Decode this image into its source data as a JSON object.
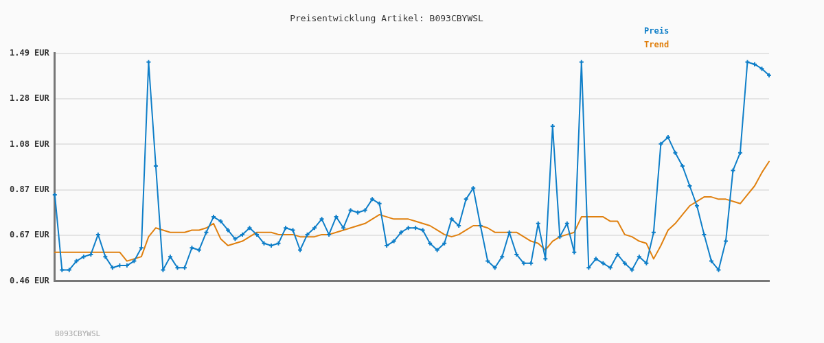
{
  "chart_data": {
    "type": "line",
    "title": "Preisentwicklung Artikel: B093CBYWSL",
    "categories": [
      null,
      null,
      null,
      null,
      null,
      null,
      null,
      null,
      null,
      null,
      null,
      null,
      null,
      null,
      null,
      null,
      null,
      null,
      null,
      null,
      null,
      null,
      null,
      null,
      null,
      null,
      null,
      null,
      null,
      null,
      null,
      null,
      null,
      null,
      null,
      null,
      null,
      null,
      null,
      null,
      null,
      null,
      null,
      null,
      null,
      null,
      null,
      null,
      null,
      null,
      null,
      null,
      null,
      null,
      null,
      null,
      null,
      null,
      null,
      null,
      null,
      null,
      null,
      null,
      null,
      null,
      null,
      null,
      null,
      null,
      null,
      null,
      null,
      null,
      null,
      null,
      null,
      null,
      null,
      null,
      null,
      null,
      null,
      null,
      null,
      null,
      null,
      null,
      null,
      null,
      null,
      null,
      null,
      null,
      null,
      null,
      null,
      null,
      null,
      null
    ],
    "series": [
      {
        "name": "Preis",
        "color": "#0e7ec8",
        "marker": "cross",
        "values": [
          0.85,
          0.51,
          0.51,
          0.55,
          0.57,
          0.58,
          0.67,
          0.57,
          0.52,
          0.53,
          0.53,
          0.55,
          0.61,
          1.45,
          0.98,
          0.51,
          0.57,
          0.52,
          0.52,
          0.61,
          0.6,
          0.68,
          0.75,
          0.73,
          0.69,
          0.65,
          0.67,
          0.7,
          0.67,
          0.63,
          0.62,
          0.63,
          0.7,
          0.69,
          0.6,
          0.67,
          0.7,
          0.74,
          0.67,
          0.75,
          0.7,
          0.78,
          0.77,
          0.78,
          0.83,
          0.81,
          0.62,
          0.64,
          0.68,
          0.7,
          0.7,
          0.69,
          0.63,
          0.6,
          0.63,
          0.74,
          0.71,
          0.83,
          0.88,
          0.71,
          0.55,
          0.52,
          0.57,
          0.68,
          0.58,
          0.54,
          0.54,
          0.72,
          0.56,
          1.16,
          0.66,
          0.72,
          0.59,
          1.45,
          0.52,
          0.56,
          0.54,
          0.52,
          0.58,
          0.54,
          0.51,
          0.57,
          0.54,
          0.68,
          1.08,
          1.11,
          1.04,
          0.98,
          0.89,
          0.8,
          0.67,
          0.55,
          0.51,
          0.64,
          0.96,
          1.04,
          1.45,
          1.44,
          1.42,
          1.39
        ]
      },
      {
        "name": "Trend",
        "color": "#e0800f",
        "marker": "none",
        "values": [
          0.59,
          0.59,
          0.59,
          0.59,
          0.59,
          0.59,
          0.59,
          0.59,
          0.59,
          0.59,
          0.55,
          0.56,
          0.57,
          0.66,
          0.7,
          0.69,
          0.68,
          0.68,
          0.68,
          0.69,
          0.69,
          0.7,
          0.72,
          0.65,
          0.62,
          0.63,
          0.64,
          0.66,
          0.68,
          0.68,
          0.68,
          0.67,
          0.67,
          0.67,
          0.66,
          0.66,
          0.66,
          0.67,
          0.67,
          0.68,
          0.69,
          0.7,
          0.71,
          0.72,
          0.74,
          0.76,
          0.75,
          0.74,
          0.74,
          0.74,
          0.73,
          0.72,
          0.71,
          0.69,
          0.67,
          0.66,
          0.67,
          0.69,
          0.71,
          0.71,
          0.7,
          0.68,
          0.68,
          0.68,
          0.68,
          0.66,
          0.64,
          0.63,
          0.6,
          0.64,
          0.66,
          0.67,
          0.68,
          0.75,
          0.75,
          0.75,
          0.75,
          0.73,
          0.73,
          0.67,
          0.66,
          0.64,
          0.63,
          0.56,
          0.62,
          0.69,
          0.72,
          0.76,
          0.8,
          0.82,
          0.84,
          0.84,
          0.83,
          0.83,
          0.82,
          0.81,
          0.85,
          0.89,
          0.95,
          1.0
        ]
      }
    ],
    "ylim": [
      0.46,
      1.49
    ],
    "yticks": [
      {
        "value": 0.46,
        "label": "0.46 EUR"
      },
      {
        "value": 0.666,
        "label": "0.67 EUR"
      },
      {
        "value": 0.872,
        "label": "0.87 EUR"
      },
      {
        "value": 1.078,
        "label": "1.08 EUR"
      },
      {
        "value": 1.284,
        "label": "1.28 EUR"
      },
      {
        "value": 1.49,
        "label": "1.49 EUR"
      }
    ],
    "grid": "y",
    "legend": "top right",
    "line_style": "solid",
    "annotations": [
      "B093CBYWSL"
    ]
  }
}
